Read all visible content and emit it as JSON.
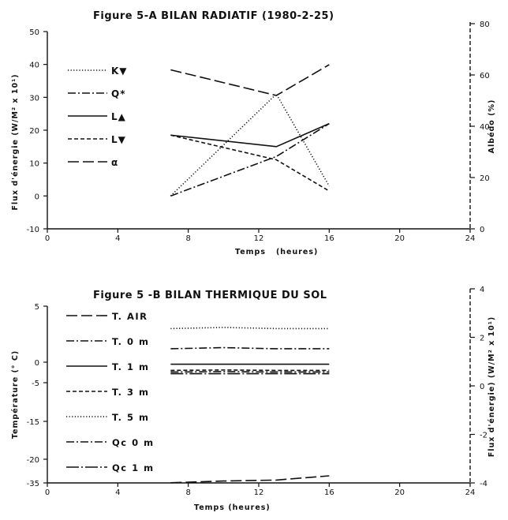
{
  "chart_data": [
    {
      "type": "line",
      "title": "Figure 5-A BILAN RADIATIF (1980-2-25)",
      "xlabel": "Temps   (heures)",
      "ylabel": "Flux d'énergie (W/M² x 10¹)",
      "ylabel_right": "Albédo (%)",
      "xlim": [
        0,
        24
      ],
      "ylim": [
        -10,
        50
      ],
      "ylim_right": [
        0,
        80
      ],
      "x_ticks": [
        "0",
        "4",
        "8",
        "12",
        "16",
        "20",
        "24"
      ],
      "y_ticks": [
        "-10",
        "0",
        "10",
        "20",
        "30",
        "40",
        "50"
      ],
      "y_ticks_right": [
        "0",
        "20",
        "40",
        "60",
        "80"
      ],
      "grid": false,
      "legend_position": "left",
      "series": [
        {
          "name": "K▼",
          "style": "dotted",
          "axis": "left",
          "x": [
            7,
            13,
            16
          ],
          "y": [
            0,
            31,
            3
          ]
        },
        {
          "name": "Q*",
          "style": "dash-dot",
          "axis": "left",
          "x": [
            7,
            13,
            16
          ],
          "y": [
            0,
            12,
            22
          ]
        },
        {
          "name": "L▲",
          "style": "solid",
          "axis": "left",
          "x": [
            7,
            13,
            16
          ],
          "y": [
            18.5,
            15,
            22
          ]
        },
        {
          "name": "L▼",
          "style": "short-dash",
          "axis": "left",
          "x": [
            7,
            13,
            16
          ],
          "y": [
            18.5,
            11,
            1.5
          ]
        },
        {
          "name": "α",
          "style": "long-dash",
          "axis": "right",
          "x": [
            7,
            13,
            16
          ],
          "y": [
            62,
            52,
            64
          ]
        }
      ]
    },
    {
      "type": "line",
      "title": "Figure 5 -B BILAN THERMIQUE DU SOL",
      "xlabel": "Temps (heures)",
      "ylabel": "Température (° C)",
      "ylabel_right": "Flux d'énergie) (W/M² x 10¹)",
      "xlim": [
        0,
        24
      ],
      "y_ticks": [
        "-35",
        "-20",
        "-15",
        "-5",
        "0",
        "5"
      ],
      "y_ticks_right": [
        "-4",
        "-2",
        "0",
        "2",
        "4"
      ],
      "ylim_right": [
        -4,
        4
      ],
      "x_ticks": [
        "0",
        "4",
        "8",
        "12",
        "16",
        "20",
        "24"
      ],
      "grid": false,
      "legend_position": "left",
      "series": [
        {
          "name": "T. AIR",
          "style": "long-dash",
          "x": [
            7,
            10,
            13,
            16
          ],
          "y": [
            -34.9,
            -33.8,
            -33.2,
            -30.5
          ]
        },
        {
          "name": "T. 0 m",
          "style": "dash-dot",
          "x": [
            7,
            10,
            13,
            16
          ],
          "y": [
            1.2,
            1.3,
            1.2,
            1.2
          ]
        },
        {
          "name": "T. 1 m",
          "style": "solid",
          "x": [
            7,
            10,
            13,
            16
          ],
          "y": [
            -0.5,
            -0.5,
            -0.5,
            -0.5
          ]
        },
        {
          "name": "T. 3 m",
          "style": "short-dash",
          "x": [
            7,
            10,
            13,
            16
          ],
          "y": [
            -2.0,
            -1.9,
            -2.0,
            -2.0
          ]
        },
        {
          "name": "T. 5 m",
          "style": "dotted",
          "x": [
            7,
            10,
            13,
            16
          ],
          "y": [
            3.0,
            3.1,
            3.0,
            3.0
          ]
        },
        {
          "name": "Qc 0 m",
          "style": "dash-dot",
          "x": [
            7,
            10,
            13,
            16
          ],
          "y": [
            -2.4,
            -2.3,
            -2.4,
            -2.4
          ]
        },
        {
          "name": "Qc 1 m",
          "style": "long-dash-dot",
          "x": [
            7,
            10,
            13,
            16
          ],
          "y": [
            -2.8,
            -2.8,
            -2.8,
            -2.8
          ]
        }
      ]
    }
  ]
}
